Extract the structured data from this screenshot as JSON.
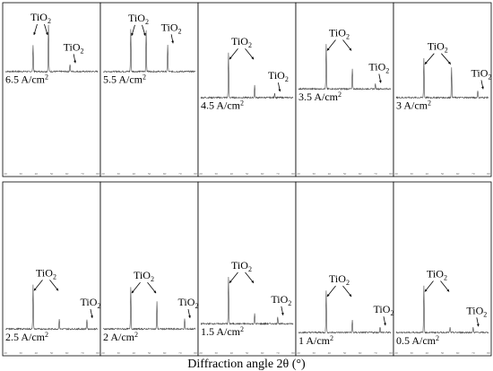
{
  "figure": {
    "xlabel": "Diffraction angle 2θ (°)"
  },
  "chart_data": {
    "type": "line",
    "xlim": [
      20,
      80
    ],
    "x_ticks": [
      "20",
      "30",
      "40",
      "50",
      "60",
      "70",
      "80"
    ],
    "peak_label": "TiO",
    "peak_label_sub": "2",
    "unit_main": "A/cm",
    "unit_sup": "2",
    "panels": [
      {
        "label": "6.5",
        "unit": "A/cm",
        "unit_sup": "2",
        "peaks": [
          [
            38,
            0.55
          ],
          [
            48,
            0.95
          ],
          [
            62,
            0.15
          ]
        ]
      },
      {
        "label": "5.5",
        "unit": "A/cm",
        "unit_sup": "2",
        "peaks": [
          [
            38,
            0.85
          ],
          [
            48,
            0.85
          ],
          [
            62,
            0.55
          ]
        ]
      },
      {
        "label": "4.5",
        "unit": "A/cm",
        "unit_sup": "2",
        "peaks": [
          [
            38,
            0.9
          ],
          [
            55,
            0.25
          ],
          [
            68,
            0.1
          ]
        ]
      },
      {
        "label": "3.5",
        "unit": "A/cm",
        "unit_sup": "2",
        "peaks": [
          [
            38,
            0.9
          ],
          [
            55,
            0.4
          ],
          [
            70,
            0.1
          ]
        ]
      },
      {
        "label": "3",
        "unit": "A/cm",
        "unit_sup": "2",
        "peaks": [
          [
            38,
            0.8
          ],
          [
            56,
            0.6
          ],
          [
            73,
            0.15
          ]
        ]
      },
      {
        "label": "2.5",
        "unit": "A/cm",
        "unit_sup": "2",
        "peaks": [
          [
            38,
            0.9
          ],
          [
            55,
            0.2
          ],
          [
            73,
            0.2
          ]
        ]
      },
      {
        "label": "2",
        "unit": "A/cm",
        "unit_sup": "2",
        "peaks": [
          [
            38,
            0.85
          ],
          [
            55,
            0.55
          ],
          [
            73,
            0.2
          ]
        ]
      },
      {
        "label": "1.5",
        "unit": "A/cm",
        "unit_sup": "2",
        "peaks": [
          [
            38,
            0.95
          ],
          [
            55,
            0.2
          ],
          [
            70,
            0.15
          ]
        ]
      },
      {
        "label": "1",
        "unit": "A/cm",
        "unit_sup": "2",
        "peaks": [
          [
            38,
            0.85
          ],
          [
            55,
            0.25
          ],
          [
            73,
            0.12
          ]
        ]
      },
      {
        "label": "0.5",
        "unit": "A/cm",
        "unit_sup": "2",
        "peaks": [
          [
            38,
            0.95
          ],
          [
            55,
            0.1
          ],
          [
            70,
            0.1
          ]
        ]
      }
    ]
  }
}
